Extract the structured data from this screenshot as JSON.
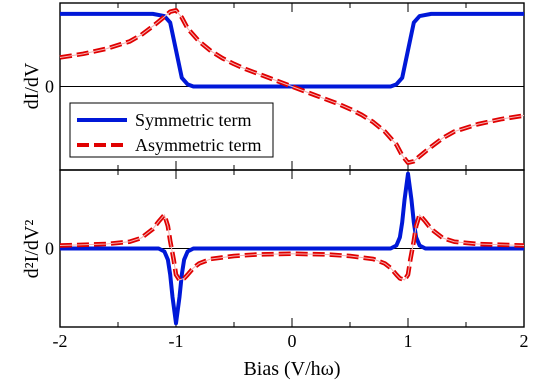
{
  "chart_data": [
    {
      "type": "line",
      "panel": "top",
      "ylabel": "dI/dV",
      "xlim": [
        -2,
        2
      ],
      "ylim": [
        -1.15,
        1.15
      ],
      "y_ticks": [
        {
          "value": 0,
          "label": "0"
        }
      ],
      "legend": {
        "placement": "lower-left",
        "entries": [
          "Symmetric term",
          "Asymmetric term"
        ]
      },
      "series": [
        {
          "name": "Symmetric term",
          "style": "solid",
          "color": "#0018d8",
          "x": [
            -2.0,
            -1.2,
            -1.1,
            -1.05,
            -1.0,
            -0.95,
            -0.9,
            -0.85,
            -0.8,
            0.0,
            0.8,
            0.85,
            0.9,
            0.95,
            1.0,
            1.05,
            1.1,
            1.2,
            2.0
          ],
          "y": [
            1.0,
            1.0,
            0.97,
            0.88,
            0.5,
            0.12,
            0.03,
            0.0,
            0.0,
            0.0,
            0.0,
            0.0,
            0.03,
            0.12,
            0.5,
            0.88,
            0.97,
            1.0,
            1.0
          ]
        },
        {
          "name": "Asymmetric term",
          "style": "dashed",
          "color": "#e00000",
          "x": [
            -2.0,
            -1.8,
            -1.6,
            -1.4,
            -1.3,
            -1.2,
            -1.1,
            -1.05,
            -1.0,
            -0.95,
            -0.9,
            -0.8,
            -0.7,
            -0.6,
            -0.5,
            -0.4,
            -0.3,
            -0.2,
            -0.1,
            0.0,
            0.1,
            0.2,
            0.3,
            0.4,
            0.5,
            0.6,
            0.7,
            0.8,
            0.9,
            0.95,
            1.0,
            1.05,
            1.1,
            1.2,
            1.3,
            1.4,
            1.6,
            1.8,
            2.0
          ],
          "y": [
            0.4,
            0.45,
            0.52,
            0.62,
            0.71,
            0.83,
            0.96,
            1.03,
            1.05,
            0.95,
            0.8,
            0.62,
            0.49,
            0.39,
            0.31,
            0.24,
            0.18,
            0.12,
            0.06,
            0.0,
            -0.06,
            -0.12,
            -0.18,
            -0.24,
            -0.31,
            -0.39,
            -0.49,
            -0.62,
            -0.8,
            -0.95,
            -1.05,
            -1.03,
            -0.96,
            -0.83,
            -0.71,
            -0.62,
            -0.52,
            -0.45,
            -0.4
          ]
        }
      ]
    },
    {
      "type": "line",
      "panel": "bottom",
      "ylabel": "d²I/dV²",
      "xlabel": "Bias (V/hω)",
      "xlim": [
        -2,
        2
      ],
      "ylim": [
        -1.05,
        1.05
      ],
      "x_ticks": [
        {
          "value": -2,
          "label": "-2"
        },
        {
          "value": -1,
          "label": "-1"
        },
        {
          "value": 0,
          "label": "0"
        },
        {
          "value": 1,
          "label": "1"
        },
        {
          "value": 2,
          "label": "2"
        }
      ],
      "y_ticks": [
        {
          "value": 0,
          "label": "0"
        }
      ],
      "series": [
        {
          "name": "Symmetric term",
          "style": "solid",
          "color": "#0018d8",
          "x": [
            -2.0,
            -1.15,
            -1.1,
            -1.07,
            -1.05,
            -1.03,
            -1.0,
            -0.97,
            -0.95,
            -0.93,
            -0.9,
            -0.85,
            0.0,
            0.85,
            0.9,
            0.93,
            0.95,
            0.97,
            1.0,
            1.03,
            1.05,
            1.07,
            1.1,
            1.15,
            2.0
          ],
          "y": [
            0.0,
            0.0,
            -0.04,
            -0.15,
            -0.35,
            -0.65,
            -1.0,
            -0.65,
            -0.35,
            -0.15,
            -0.04,
            0.0,
            0.0,
            0.0,
            0.04,
            0.15,
            0.35,
            0.65,
            1.0,
            0.65,
            0.35,
            0.15,
            0.04,
            0.0,
            0.0
          ]
        },
        {
          "name": "Asymmetric term",
          "style": "dashed",
          "color": "#e00000",
          "x": [
            -2.0,
            -1.6,
            -1.4,
            -1.3,
            -1.2,
            -1.15,
            -1.1,
            -1.07,
            -1.05,
            -1.02,
            -1.0,
            -0.97,
            -0.93,
            -0.9,
            -0.85,
            -0.8,
            -0.7,
            -0.5,
            -0.3,
            0.0,
            0.3,
            0.5,
            0.7,
            0.8,
            0.85,
            0.9,
            0.93,
            0.97,
            1.0,
            1.02,
            1.05,
            1.07,
            1.1,
            1.15,
            1.2,
            1.3,
            1.4,
            1.6,
            2.0
          ],
          "y": [
            0.04,
            0.06,
            0.09,
            0.14,
            0.26,
            0.36,
            0.45,
            0.3,
            0.1,
            -0.15,
            -0.35,
            -0.42,
            -0.4,
            -0.35,
            -0.26,
            -0.2,
            -0.14,
            -0.1,
            -0.08,
            -0.07,
            -0.08,
            -0.1,
            -0.14,
            -0.2,
            -0.26,
            -0.35,
            -0.4,
            -0.42,
            -0.35,
            -0.15,
            0.1,
            0.3,
            0.45,
            0.36,
            0.26,
            0.14,
            0.09,
            0.06,
            0.04
          ]
        }
      ]
    }
  ]
}
